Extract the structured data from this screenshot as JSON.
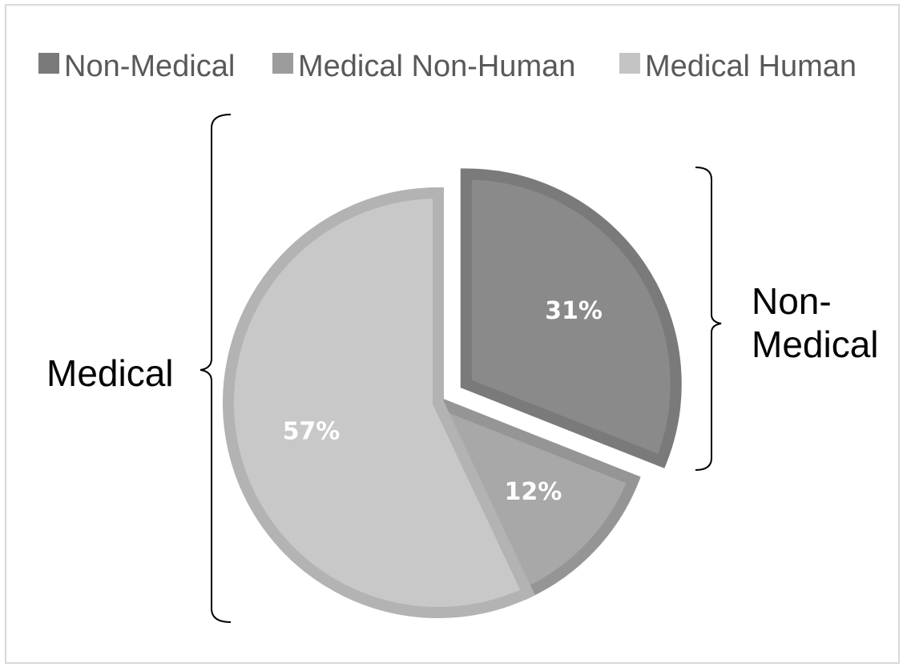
{
  "chart_data": {
    "type": "pie",
    "title": "",
    "series": [
      {
        "name": "Non-Medical",
        "value": 31,
        "label": "31%",
        "color": "#8a8a8a",
        "stroke": "#7a7a7a",
        "exploded": true
      },
      {
        "name": "Medical Non-Human",
        "value": 12,
        "label": "12%",
        "color": "#a8a8a8",
        "stroke": "#959595",
        "exploded": false
      },
      {
        "name": "Medical Human",
        "value": 57,
        "label": "57%",
        "color": "#c8c8c8",
        "stroke": "#b3b3b3",
        "exploded": false
      }
    ],
    "legend": {
      "position": "top",
      "entries": [
        "Non-Medical",
        "Medical Non-Human",
        "Medical Human"
      ]
    },
    "annotations": {
      "left_brace_label": "Medical",
      "right_brace_label_line1": "Non-",
      "right_brace_label_line2": "Medical"
    }
  }
}
